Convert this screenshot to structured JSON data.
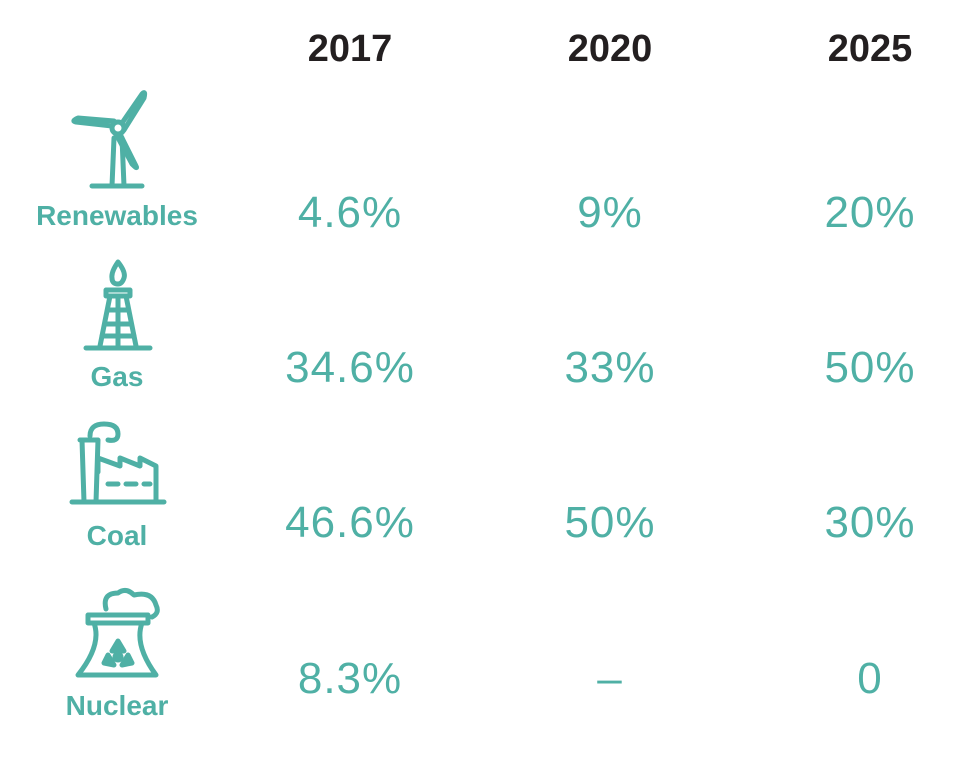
{
  "colors": {
    "accent": "#4fb0a5",
    "header": "#231f20"
  },
  "chart_data": {
    "type": "table",
    "columns": [
      "2017",
      "2020",
      "2025"
    ],
    "rows": [
      {
        "label": "Renewables",
        "icon": "wind-turbine-icon",
        "values": [
          "4.6%",
          "9%",
          "20%"
        ]
      },
      {
        "label": "Gas",
        "icon": "gas-well-icon",
        "values": [
          "34.6%",
          "33%",
          "50%"
        ]
      },
      {
        "label": "Coal",
        "icon": "factory-icon",
        "values": [
          "46.6%",
          "50%",
          "30%"
        ]
      },
      {
        "label": "Nuclear",
        "icon": "nuclear-plant-icon",
        "values": [
          "8.3%",
          "–",
          "0"
        ]
      }
    ]
  }
}
